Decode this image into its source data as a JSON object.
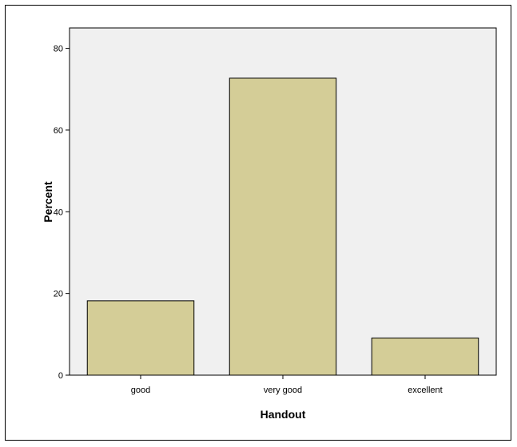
{
  "chart_data": {
    "type": "bar",
    "categories": [
      "good",
      "very good",
      "excellent"
    ],
    "values": [
      18.2,
      72.7,
      9.1
    ],
    "xlabel": "Handout",
    "ylabel": "Percent",
    "ylim": [
      0,
      85
    ],
    "yticks": [
      0,
      20,
      40,
      60,
      80
    ],
    "grid": false,
    "colors": {
      "bar_fill": "#d4cd97",
      "bar_stroke": "#000000",
      "plot_background": "#f0f0f0"
    }
  }
}
